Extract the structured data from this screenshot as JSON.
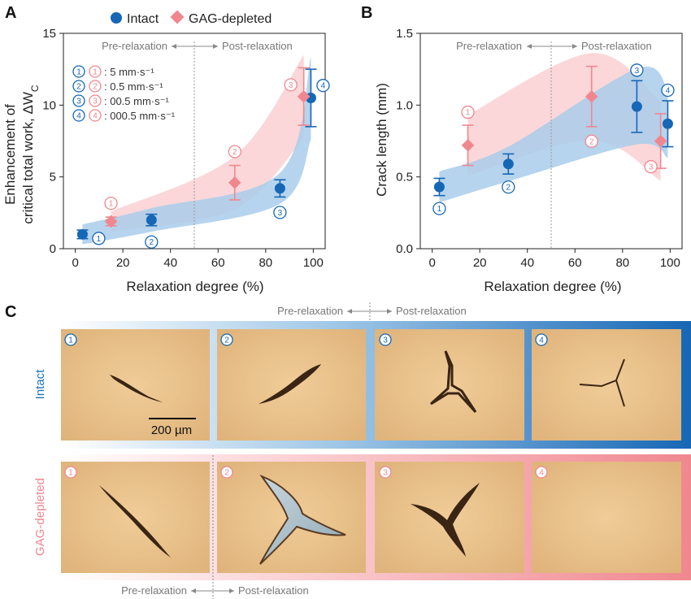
{
  "colors": {
    "intact": "#1667b5",
    "gag": "#f0878f",
    "intact_band": "#a9cdea",
    "gag_band": "#f9c9cc",
    "tissue": "#e8c08a"
  },
  "legend": {
    "intact": "Intact",
    "gag": "GAG-depleted"
  },
  "speeds": [
    "5 mm·s⁻¹",
    "0.5 mm·s⁻¹",
    "00.5 mm·s⁻¹",
    "000.5 mm·s⁻¹"
  ],
  "regions": {
    "pre": "Pre-relaxation",
    "post": "Post-relaxation"
  },
  "panels": {
    "a": "A",
    "b": "B",
    "c": "C"
  },
  "chart_data": [
    {
      "type": "scatter",
      "panel": "A",
      "xlabel": "Relaxation degree (%)",
      "ylabel_line1": "Enhancement of",
      "ylabel_line2": "critical total work, ΔW",
      "ylabel_sub": "C",
      "xlim": [
        -5,
        105
      ],
      "ylim": [
        0,
        15
      ],
      "xticks": [
        0,
        20,
        40,
        60,
        80,
        100
      ],
      "yticks": [
        0,
        5,
        10,
        15
      ],
      "divider_x": 50,
      "series": [
        {
          "name": "Intact",
          "points": [
            {
              "x": 3,
              "y": 1.0,
              "err": 0.3,
              "label": "1"
            },
            {
              "x": 32,
              "y": 2.0,
              "err": 0.4,
              "label": "2"
            },
            {
              "x": 86,
              "y": 4.2,
              "err": 0.6,
              "label": "3"
            },
            {
              "x": 99,
              "y": 10.5,
              "err": 2.0,
              "label": "4"
            }
          ]
        },
        {
          "name": "GAG-depleted",
          "points": [
            {
              "x": 15,
              "y": 1.9,
              "err": 0.3,
              "label": "1"
            },
            {
              "x": 67,
              "y": 4.6,
              "err": 1.2,
              "label": "2"
            },
            {
              "x": 96,
              "y": 10.6,
              "err": 2.0,
              "label": "3"
            }
          ]
        }
      ]
    },
    {
      "type": "scatter",
      "panel": "B",
      "xlabel": "Relaxation degree (%)",
      "ylabel": "Crack length (mm)",
      "xlim": [
        -5,
        105
      ],
      "ylim": [
        0,
        1.5
      ],
      "xticks": [
        0,
        20,
        40,
        60,
        80,
        100
      ],
      "yticks": [
        0.0,
        0.5,
        1.0,
        1.5
      ],
      "divider_x": 50,
      "series": [
        {
          "name": "Intact",
          "points": [
            {
              "x": 3,
              "y": 0.43,
              "err": 0.06,
              "label": "1"
            },
            {
              "x": 32,
              "y": 0.59,
              "err": 0.07,
              "label": "2"
            },
            {
              "x": 86,
              "y": 0.99,
              "err": 0.18,
              "label": "3"
            },
            {
              "x": 99,
              "y": 0.87,
              "err": 0.16,
              "label": "4"
            }
          ]
        },
        {
          "name": "GAG-depleted",
          "points": [
            {
              "x": 15,
              "y": 0.72,
              "err": 0.14,
              "label": "1"
            },
            {
              "x": 67,
              "y": 1.06,
              "err": 0.21,
              "label": "2"
            },
            {
              "x": 96,
              "y": 0.75,
              "err": 0.19,
              "label": "3"
            }
          ]
        }
      ]
    }
  ],
  "images": {
    "row_intact": "Intact",
    "row_gag": "GAG-depleted",
    "scale_bar": "200 µm",
    "tile_labels": [
      "1",
      "2",
      "3",
      "4"
    ]
  }
}
